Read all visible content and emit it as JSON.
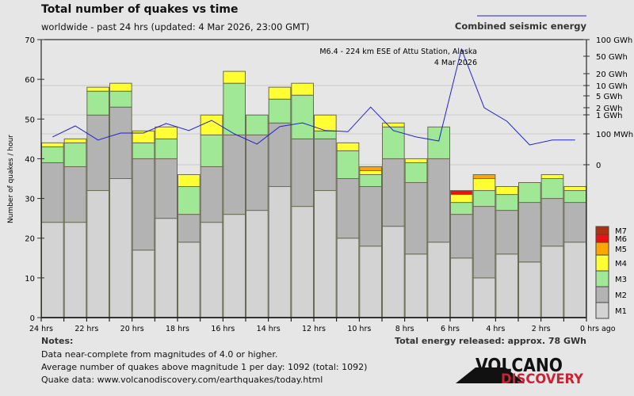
{
  "chart_data": {
    "type": "bar",
    "stacked": true,
    "title": "Total number of quakes vs time",
    "subtitle": "worldwide - past 24 hrs (updated: 4 Mar 2026, 23:00 GMT)",
    "ylabel": "Number of quakes / hour",
    "ylim": [
      0,
      70
    ],
    "yticks": [
      0,
      10,
      20,
      30,
      40,
      50,
      60,
      70
    ],
    "xticks": [
      "24 hrs",
      "22 hrs",
      "20 hrs",
      "18 hrs",
      "16 hrs",
      "14 hrs",
      "12 hrs",
      "10 hrs",
      "8 hrs",
      "6 hrs",
      "4 hrs",
      "2 hrs",
      "0 hrs ago"
    ],
    "hours_ago_start": [
      24,
      23,
      22,
      21,
      20,
      19,
      18,
      17,
      16,
      15,
      14,
      13,
      12,
      11,
      10,
      9,
      8,
      7,
      6,
      5,
      4,
      3,
      2,
      1
    ],
    "series": [
      {
        "name": "M1",
        "color": "#d3d3d3",
        "values": [
          24,
          24,
          32,
          35,
          17,
          25,
          19,
          24,
          26,
          27,
          33,
          28,
          32,
          20,
          18,
          23,
          16,
          19,
          15,
          10,
          16,
          14,
          18,
          19
        ]
      },
      {
        "name": "M2",
        "color": "#b3b3b3",
        "values": [
          15,
          14,
          19,
          18,
          23,
          15,
          7,
          14,
          20,
          19,
          16,
          17,
          13,
          15,
          15,
          17,
          18,
          21,
          11,
          18,
          11,
          15,
          12,
          10
        ]
      },
      {
        "name": "M3",
        "color": "#a0e896",
        "values": [
          4,
          6,
          6,
          4,
          4,
          5,
          7,
          8,
          13,
          5,
          6,
          11,
          2,
          7,
          3,
          8,
          5,
          8,
          3,
          4,
          4,
          5,
          5,
          3
        ]
      },
      {
        "name": "M4",
        "color": "#ffff33",
        "values": [
          1,
          1,
          1,
          2,
          3,
          3,
          3,
          5,
          3,
          0,
          3,
          3,
          4,
          2,
          1,
          1,
          1,
          0,
          2,
          3,
          2,
          0,
          1,
          1
        ]
      },
      {
        "name": "M5",
        "color": "#ffa500",
        "values": [
          0,
          0,
          0,
          0,
          0,
          0,
          0,
          0,
          0,
          0,
          0,
          0,
          0,
          0,
          1,
          0,
          0,
          0,
          0,
          1,
          0,
          0,
          0,
          0
        ]
      },
      {
        "name": "M6",
        "color": "#ee1111",
        "values": [
          0,
          0,
          0,
          0,
          0,
          0,
          0,
          0,
          0,
          0,
          0,
          0,
          0,
          0,
          0,
          0,
          0,
          0,
          1,
          0,
          0,
          0,
          0,
          0
        ]
      },
      {
        "name": "M7",
        "color": "#b03010",
        "values": [
          0,
          0,
          0,
          0,
          0,
          0,
          0,
          0,
          0,
          0,
          0,
          0,
          0,
          0,
          0,
          0,
          0,
          0,
          0,
          0,
          0,
          0,
          0,
          0
        ]
      }
    ],
    "energy_line": {
      "name": "Combined seismic energy",
      "color": "#2222cc",
      "unit": "GWh",
      "values": [
        0.09,
        0.26,
        0.08,
        0.11,
        0.11,
        0.35,
        0.15,
        0.51,
        0.1,
        0.067,
        0.24,
        0.38,
        0.15,
        0.13,
        2.1,
        0.15,
        0.09,
        0.077,
        67,
        2,
        0.46,
        0.064,
        0.08,
        0.08
      ],
      "axis_ticks": [
        {
          "label": "100 GWh",
          "value": 100
        },
        {
          "label": "50 GWh",
          "value": 50
        },
        {
          "label": "20 GWh",
          "value": 20
        },
        {
          "label": "10 GWh",
          "value": 10
        },
        {
          "label": "5 GWh",
          "value": 5
        },
        {
          "label": "2 GWh",
          "value": 2
        },
        {
          "label": "1 GWh",
          "value": 1
        },
        {
          "label": "100 MWh",
          "value": 0.1
        },
        {
          "label": "0",
          "value": 0
        }
      ]
    },
    "annotation": {
      "line1": "M6.4 - 224 km ESE of Attu Station, Alaska",
      "line2": "4 Mar 2026"
    },
    "legend_placement": "right-bottom",
    "grid": true
  },
  "notes": {
    "heading": "Notes:",
    "lines": [
      "Data near-complete from magnitudes of 4.0 or higher.",
      "Average number of quakes above magnitude 1 per day: 1092 (total: 1092)",
      "Quake data: www.volcanodiscovery.com/earthquakes/today.html"
    ]
  },
  "total_energy": "Total energy released: approx. 78 GWh",
  "logo": {
    "line1": "VOLCANO",
    "line2": "DISCOVERY"
  }
}
